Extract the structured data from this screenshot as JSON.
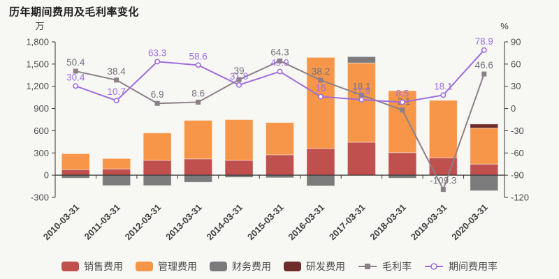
{
  "page": {
    "background": "#f7f7f4"
  },
  "chart_data": {
    "type": "bar",
    "title": "历年期间费用及毛利率变化",
    "grid": false,
    "legend_position": "bottom",
    "categories": [
      "2010-03-31",
      "2011-03-31",
      "2012-03-31",
      "2013-03-31",
      "2014-03-31",
      "2015-03-31",
      "2016-03-31",
      "2017-03-31",
      "2018-03-31",
      "2019-03-31",
      "2020-03-31"
    ],
    "left_axis": {
      "unit": "万",
      "min": -300,
      "max": 1800,
      "ticks": [
        "1,800",
        "1,500",
        "1,200",
        "900",
        "600",
        "300",
        "0",
        "-300"
      ]
    },
    "right_axis": {
      "unit": "%",
      "min": -120,
      "max": 90,
      "ticks": [
        "90",
        "60",
        "30",
        "0",
        "-30",
        "-60",
        "-90",
        "-120"
      ]
    },
    "bar_series": [
      {
        "key": "sales-expense",
        "name": "销售费用",
        "color": "#c0504d",
        "values": [
          75,
          85,
          200,
          220,
          200,
          275,
          360,
          445,
          305,
          235,
          150
        ]
      },
      {
        "key": "admin-expense",
        "name": "管理费用",
        "color": "#f79648",
        "values": [
          215,
          140,
          370,
          520,
          550,
          435,
          1230,
          1070,
          835,
          775,
          485
        ]
      },
      {
        "key": "finance-expense",
        "name": "财务费用",
        "color": "#7b7b7b",
        "values": [
          -40,
          -140,
          -140,
          -95,
          -30,
          -35,
          -145,
          85,
          -40,
          0,
          -210
        ]
      },
      {
        "key": "rd-expense",
        "name": "研发费用",
        "color": "#6e2b28",
        "values": [
          0,
          0,
          0,
          0,
          0,
          0,
          0,
          0,
          0,
          0,
          55
        ]
      }
    ],
    "line_series": [
      {
        "key": "gross-margin",
        "name": "毛利率",
        "axis": "right",
        "marker": "square",
        "color": "#8d7f87",
        "label_color": "#76707a",
        "values": [
          50.4,
          38.4,
          6.9,
          8.6,
          39,
          64.3,
          38.2,
          18.1,
          -2.1,
          -109.3,
          46.6
        ],
        "labels": [
          "50.4",
          "38.4",
          "6.9",
          "8.6",
          "39",
          "64.3",
          "38.2",
          "18.1",
          "-2.1",
          "-109.3",
          "46.6"
        ]
      },
      {
        "key": "period-expense-ratio",
        "name": "期间费用率",
        "axis": "right",
        "marker": "circle",
        "color": "#9e6ddd",
        "label_color": "#9d6ee0",
        "values": [
          30.4,
          10.7,
          63.3,
          58.6,
          31.8,
          49.9,
          16,
          11.9,
          8.5,
          18.1,
          78.9
        ],
        "labels": [
          "30.4",
          "10.7",
          "63.3",
          "58.6",
          "31.8",
          "49.9",
          "16",
          "11.9",
          "8.5",
          "18.1",
          "78.9"
        ]
      }
    ]
  }
}
